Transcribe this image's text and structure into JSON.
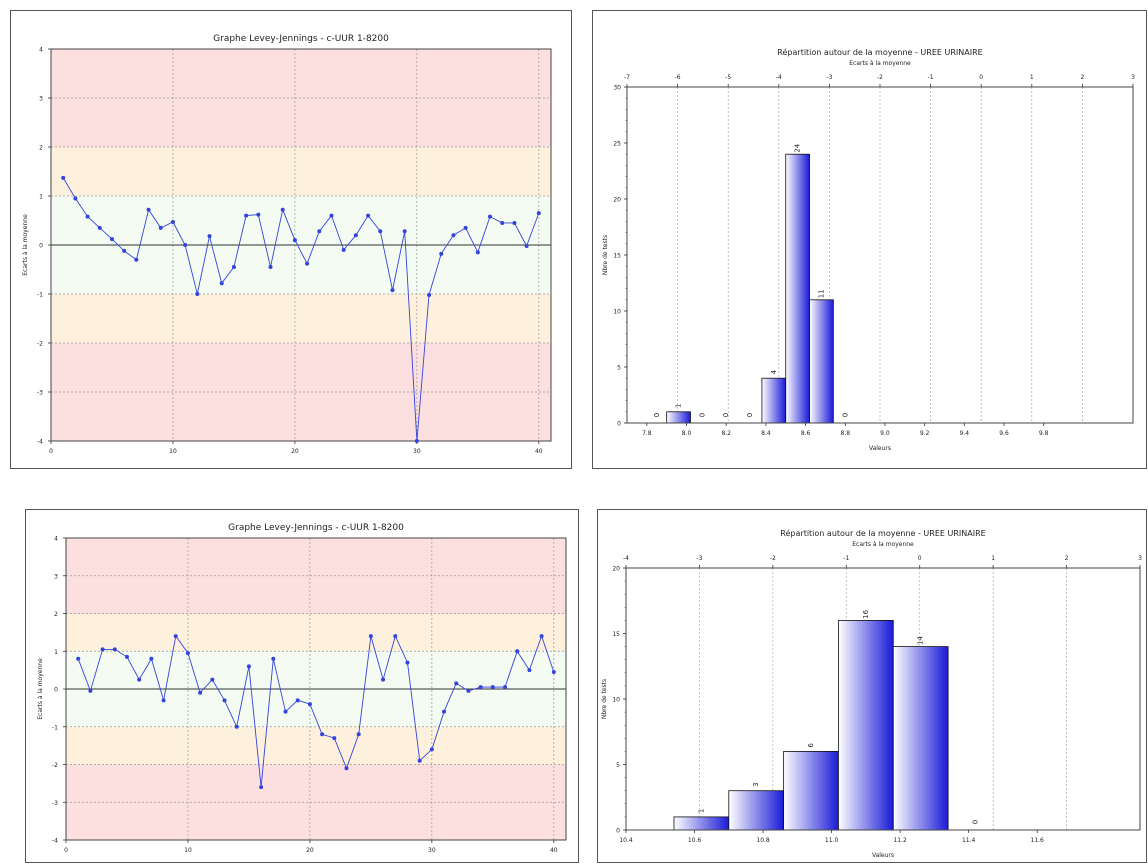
{
  "chart_data": [
    {
      "type": "line",
      "title": "Graphe Levey-Jennings - c-UUR 1-8200",
      "xlabel": "",
      "ylabel": "Ecarts à la moyenne",
      "xlim": [
        0,
        41
      ],
      "ylim": [
        -4,
        4
      ],
      "xticks": [
        0,
        10,
        20,
        30,
        40
      ],
      "yticks": [
        -4,
        -3,
        -2,
        -1,
        0,
        1,
        2,
        3,
        4
      ],
      "bands": [
        {
          "from": -4,
          "to": -2,
          "color": "#fbe0df"
        },
        {
          "from": -2,
          "to": -1,
          "color": "#fdf0dc"
        },
        {
          "from": -1,
          "to": 1,
          "color": "#f3fbf2"
        },
        {
          "from": 1,
          "to": 2,
          "color": "#fdf0dc"
        },
        {
          "from": 2,
          "to": 4,
          "color": "#fbe0df"
        }
      ],
      "grid": true,
      "series": [
        {
          "color": "#3344dd",
          "x": [
            1,
            2,
            3,
            4,
            5,
            6,
            7,
            8,
            9,
            10,
            11,
            12,
            13,
            14,
            15,
            16,
            17,
            18,
            19,
            20,
            21,
            22,
            23,
            24,
            25,
            26,
            27,
            28,
            29,
            30,
            31,
            32,
            33,
            34,
            35,
            36,
            37,
            38,
            39,
            40
          ],
          "y": [
            1.37,
            0.95,
            0.58,
            0.35,
            0.12,
            -0.12,
            -0.3,
            0.72,
            0.35,
            0.47,
            0.0,
            -1.0,
            0.18,
            -0.78,
            -0.45,
            0.6,
            0.62,
            -0.45,
            0.72,
            0.1,
            -0.38,
            0.28,
            0.6,
            -0.1,
            0.2,
            0.6,
            0.28,
            -0.92,
            0.28,
            -4.0,
            -1.02,
            -0.18,
            0.2,
            0.35,
            -0.15,
            0.58,
            0.45,
            0.45,
            -0.02,
            0.65
          ]
        }
      ]
    },
    {
      "type": "bar",
      "title": "Répartition autour de la moyenne - UREE URINAIRE",
      "top_axis_label": "Ecarts à la moyenne",
      "xlabel": "Valeurs",
      "ylabel": "Nbre de tests",
      "top_ticks": [
        "-7",
        "-6",
        "-5",
        "-4",
        "-3",
        "-2",
        "-1",
        "0",
        "1",
        "2",
        "3"
      ],
      "bottom_ticks": [
        "7.8",
        "8.0",
        "8.2",
        "8.4",
        "8.6",
        "8.8",
        "9.0",
        "9.2",
        "9.4",
        "9.6",
        "9.8"
      ],
      "xlim": [
        7.7,
        10.25
      ],
      "ylim": [
        0,
        30
      ],
      "yticks": [
        0,
        5,
        10,
        15,
        20,
        25,
        30
      ],
      "grid": true,
      "bins": [
        {
          "x0": 7.8,
          "x1": 7.9,
          "value": 0
        },
        {
          "x0": 7.9,
          "x1": 8.02,
          "value": 1
        },
        {
          "x0": 8.02,
          "x1": 8.14,
          "value": 0
        },
        {
          "x0": 8.14,
          "x1": 8.26,
          "value": 0
        },
        {
          "x0": 8.26,
          "x1": 8.38,
          "value": 0
        },
        {
          "x0": 8.38,
          "x1": 8.5,
          "value": 4
        },
        {
          "x0": 8.5,
          "x1": 8.62,
          "value": 24
        },
        {
          "x0": 8.62,
          "x1": 8.74,
          "value": 11
        },
        {
          "x0": 8.74,
          "x1": 8.86,
          "value": 0
        }
      ],
      "value_labels": [
        "0",
        "1",
        "0",
        "0",
        "0",
        "4",
        "24",
        "11",
        "0"
      ]
    },
    {
      "type": "line",
      "title": "Graphe Levey-Jennings - c-UUR 1-8200",
      "xlabel": "",
      "ylabel": "Ecarts à la moyenne",
      "xlim": [
        0,
        41
      ],
      "ylim": [
        -4,
        4
      ],
      "xticks": [
        0,
        10,
        20,
        30,
        40
      ],
      "yticks": [
        -4,
        -3,
        -2,
        -1,
        0,
        1,
        2,
        3,
        4
      ],
      "bands": [
        {
          "from": -4,
          "to": -2,
          "color": "#fbe0df"
        },
        {
          "from": -2,
          "to": -1,
          "color": "#fdf0dc"
        },
        {
          "from": -1,
          "to": 1,
          "color": "#f3fbf2"
        },
        {
          "from": 1,
          "to": 2,
          "color": "#fdf0dc"
        },
        {
          "from": 2,
          "to": 4,
          "color": "#fbe0df"
        }
      ],
      "grid": true,
      "series": [
        {
          "color": "#3344dd",
          "x": [
            1,
            2,
            3,
            4,
            5,
            6,
            7,
            8,
            9,
            10,
            11,
            12,
            13,
            14,
            15,
            16,
            17,
            18,
            19,
            20,
            21,
            22,
            23,
            24,
            25,
            26,
            27,
            28,
            29,
            30,
            31,
            32,
            33,
            34,
            35,
            36,
            37,
            38,
            39,
            40
          ],
          "y": [
            0.8,
            -0.05,
            1.05,
            1.05,
            0.85,
            0.25,
            0.8,
            -0.3,
            1.4,
            0.95,
            -0.1,
            0.25,
            -0.3,
            -1.0,
            0.6,
            -2.6,
            0.8,
            -0.6,
            -0.3,
            -0.4,
            -1.2,
            -1.3,
            -2.1,
            -1.2,
            1.4,
            0.25,
            1.4,
            0.7,
            -1.9,
            -1.6,
            -0.6,
            0.15,
            -0.05,
            0.05,
            0.05,
            0.05,
            1.0,
            0.5,
            1.4,
            0.45
          ]
        }
      ]
    },
    {
      "type": "bar",
      "title": "Répartition autour de la moyenne - UREE URINAIRE",
      "top_axis_label": "Ecarts à la moyenne",
      "xlabel": "Valeurs",
      "ylabel": "Nbre de tests",
      "top_ticks": [
        "-4",
        "-3",
        "-2",
        "-1",
        "0",
        "1",
        "2",
        "3"
      ],
      "bottom_ticks": [
        "10.4",
        "10.6",
        "10.8",
        "11.0",
        "11.2",
        "11.4",
        "11.6"
      ],
      "xlim": [
        10.4,
        11.9
      ],
      "ylim": [
        0,
        20
      ],
      "yticks": [
        0,
        5,
        10,
        15,
        20
      ],
      "grid": true,
      "bins": [
        {
          "x0": 10.54,
          "x1": 10.7,
          "value": 1
        },
        {
          "x0": 10.7,
          "x1": 10.86,
          "value": 3
        },
        {
          "x0": 10.86,
          "x1": 11.02,
          "value": 6
        },
        {
          "x0": 11.02,
          "x1": 11.18,
          "value": 16
        },
        {
          "x0": 11.18,
          "x1": 11.34,
          "value": 14
        },
        {
          "x0": 11.34,
          "x1": 11.5,
          "value": 0
        }
      ],
      "value_labels": [
        "1",
        "3",
        "6",
        "16",
        "14",
        "0"
      ]
    }
  ]
}
